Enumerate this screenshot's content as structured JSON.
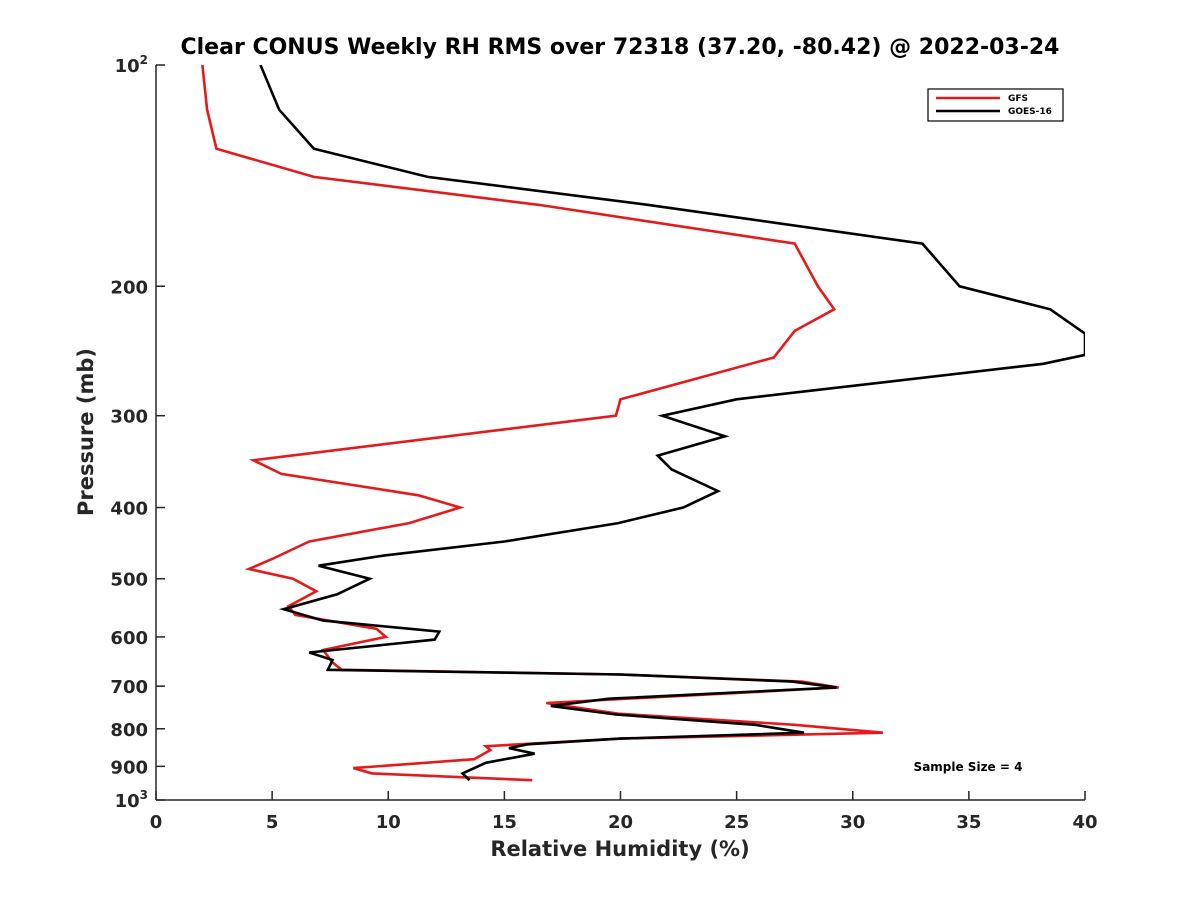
{
  "chart_data": {
    "type": "line",
    "title": "Clear CONUS Weekly RH RMS over 72318 (37.20, -80.42) @ 2022-03-24",
    "xlabel": "Relative Humidity (%)",
    "ylabel": "Pressure (mb)",
    "xlim": [
      0,
      40
    ],
    "ylim": [
      100,
      1000
    ],
    "y_scale": "log",
    "y_reversed": true,
    "xticks": [
      0,
      5,
      10,
      15,
      20,
      25,
      30,
      35,
      40
    ],
    "yticks": [
      {
        "value": 100,
        "base": "10",
        "exp": "2"
      },
      {
        "value": 200,
        "label": "200"
      },
      {
        "value": 300,
        "label": "300"
      },
      {
        "value": 400,
        "label": "400"
      },
      {
        "value": 500,
        "label": "500"
      },
      {
        "value": 600,
        "label": "600"
      },
      {
        "value": 700,
        "label": "700"
      },
      {
        "value": 800,
        "label": "800"
      },
      {
        "value": 900,
        "label": "900"
      },
      {
        "value": 1000,
        "base": "10",
        "exp": "3"
      }
    ],
    "grid": false,
    "legend_position": "top-right",
    "annotation": "Sample Size = 4",
    "series": [
      {
        "name": "GFS",
        "color": "#e41a1c",
        "points": [
          [
            2.0,
            100
          ],
          [
            2.2,
            115
          ],
          [
            2.6,
            130
          ],
          [
            6.8,
            142
          ],
          [
            16.5,
            155
          ],
          [
            27.5,
            175
          ],
          [
            28.5,
            200
          ],
          [
            29.2,
            215
          ],
          [
            27.5,
            230
          ],
          [
            26.6,
            250
          ],
          [
            20.0,
            285
          ],
          [
            19.8,
            300
          ],
          [
            4.2,
            345
          ],
          [
            5.4,
            360
          ],
          [
            11.3,
            385
          ],
          [
            13.1,
            400
          ],
          [
            10.9,
            420
          ],
          [
            6.6,
            445
          ],
          [
            5.0,
            470
          ],
          [
            4.0,
            485
          ],
          [
            5.9,
            500
          ],
          [
            6.9,
            520
          ],
          [
            5.7,
            545
          ],
          [
            6.0,
            560
          ],
          [
            9.5,
            585
          ],
          [
            9.9,
            600
          ],
          [
            7.2,
            625
          ],
          [
            7.6,
            650
          ],
          [
            8.0,
            665
          ],
          [
            20.0,
            675
          ],
          [
            27.8,
            690
          ],
          [
            29.4,
            703
          ],
          [
            16.8,
            738
          ],
          [
            19.9,
            763
          ],
          [
            27.5,
            790
          ],
          [
            31.3,
            810
          ],
          [
            20.0,
            825
          ],
          [
            14.2,
            845
          ],
          [
            14.4,
            855
          ],
          [
            13.7,
            880
          ],
          [
            8.5,
            905
          ],
          [
            9.3,
            920
          ],
          [
            16.2,
            940
          ]
        ]
      },
      {
        "name": "GOES-16",
        "color": "#000000",
        "points": [
          [
            4.5,
            100
          ],
          [
            5.3,
            115
          ],
          [
            6.8,
            130
          ],
          [
            11.7,
            142
          ],
          [
            21.2,
            155
          ],
          [
            33.0,
            175
          ],
          [
            34.6,
            200
          ],
          [
            38.5,
            215
          ],
          [
            40.0,
            232
          ],
          [
            40.0,
            248
          ],
          [
            38.2,
            255
          ],
          [
            25.0,
            285
          ],
          [
            21.8,
            300
          ],
          [
            24.5,
            320
          ],
          [
            21.6,
            340
          ],
          [
            22.2,
            355
          ],
          [
            24.2,
            380
          ],
          [
            22.7,
            400
          ],
          [
            19.9,
            420
          ],
          [
            15.0,
            445
          ],
          [
            9.8,
            465
          ],
          [
            7.0,
            480
          ],
          [
            9.2,
            500
          ],
          [
            7.8,
            525
          ],
          [
            5.5,
            550
          ],
          [
            7.2,
            570
          ],
          [
            12.2,
            590
          ],
          [
            12.0,
            605
          ],
          [
            6.6,
            630
          ],
          [
            7.6,
            645
          ],
          [
            7.4,
            665
          ],
          [
            20.0,
            675
          ],
          [
            27.4,
            690
          ],
          [
            29.3,
            703
          ],
          [
            19.5,
            728
          ],
          [
            17.0,
            745
          ],
          [
            19.8,
            765
          ],
          [
            25.8,
            790
          ],
          [
            27.9,
            810
          ],
          [
            20.0,
            825
          ],
          [
            16.0,
            840
          ],
          [
            15.2,
            850
          ],
          [
            16.3,
            865
          ],
          [
            14.2,
            890
          ],
          [
            13.2,
            920
          ],
          [
            13.5,
            940
          ]
        ]
      }
    ]
  }
}
